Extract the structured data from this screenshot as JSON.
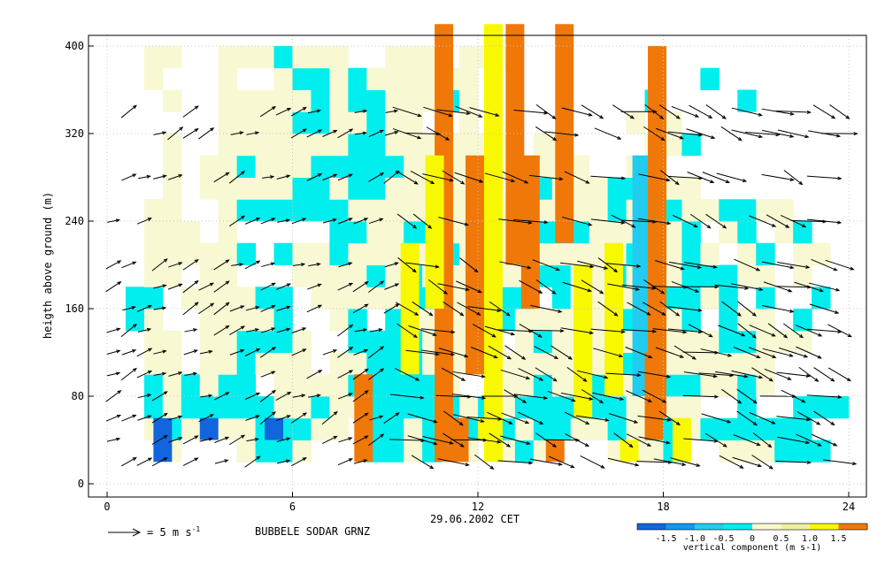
{
  "chart_data": {
    "type": "heatmap",
    "title": "",
    "xlabel": "29.06.2002 CET",
    "ylabel": "heigth above ground (m)",
    "station": "BUBBELE SODAR GRNZ",
    "xlim": [
      0,
      24
    ],
    "ylim": [
      0,
      400
    ],
    "xticks": [
      0,
      6,
      12,
      18,
      24
    ],
    "yticks": [
      0,
      80,
      160,
      240,
      320,
      400
    ],
    "grid": true,
    "arrow_legend": {
      "label": "= 5 m s",
      "unit_exponent": "-1",
      "speed": 5
    },
    "colorbar": {
      "label": "vertical component (m s-1)",
      "ticks": [
        "-1.5",
        "-1.0",
        "-0.5",
        "0",
        "0.5",
        "1.0",
        "1.5"
      ],
      "bounds": [
        -2,
        -1.5,
        -1,
        -0.5,
        0,
        0.5,
        1,
        1.5,
        2
      ],
      "colors": [
        "#1166dd",
        "#1199ee",
        "#22ccee",
        "#00eeee",
        "#f8f8d2",
        "#f0f0a0",
        "#f8f800",
        "#f07808"
      ]
    },
    "heights": [
      20,
      40,
      60,
      80,
      100,
      120,
      140,
      160,
      180,
      200,
      220,
      240,
      260,
      280,
      300,
      320,
      340,
      360,
      380,
      400,
      420
    ],
    "field_rows": [
      "...f...fggf...ggfg.f.fgf...fffg..fffggg.",
      "..fgffffgggff.ggfgfgfgfggffgfggfgggggg..",
      "..gfgggggffgffgggggfgfggggggffff..g..ggg",
      "..gfgfgg.ffffgggggf..ffgffgfffggffgf....",
      "..ff.ffgfff.ffgggffffffffffggfffffff....",
      "..ff.ffgggf..ggggfff..fgfffffgfffggfff..",
      ".gf..ffffg..fg.gffffggfffffgggfg.gff.g..",
      ".gg.ffffgg.fffffggfffgg.gfffffggfg.g..g.",
      "..ff.ff...ffffgfgffffffggffgfgfgggff.f..",
      "..fffffg.gffgfffffgfffgfffffgffgf.fg.ff.",
      "..fff.f.....ggffggfffffgggfffffg.fg.fg..",
      "..ff..fggggggffffffffffffffgfggffggff...",
      "...f.fffffggfggfffff..fgfffgggff........",
      "...f.ffgfffgggggffffffffff..fg..........",
      "...f..fffffffggfffffff.ff....ffg........",
      "......ffffggffgff..f........f.f.........",
      "...f..fffffgfggfffgf.........g....g.....",
      "..f...f..fggfgffffff............g.......",
      "..ff..fffgfff..fff.fff.................."
    ]
  }
}
